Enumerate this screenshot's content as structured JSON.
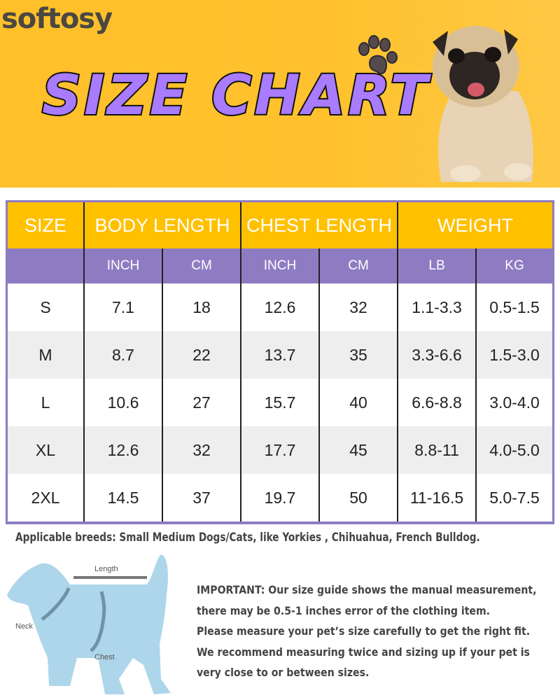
{
  "brand": "softosy",
  "title": "SIZE CHART",
  "colors": {
    "banner": "#FFC02A",
    "title_fill": "#A97BFF",
    "header": "#FFC000",
    "subheader": "#8E7CC3",
    "row_alt": "#EEEEEE"
  },
  "table": {
    "headers": [
      "SIZE",
      "BODY LENGTH",
      "CHEST LENGTH",
      "WEIGHT"
    ],
    "subheaders": [
      "",
      "INCH",
      "CM",
      "INCH",
      "CM",
      "LB",
      "KG"
    ],
    "rows": [
      [
        "S",
        "7.1",
        "18",
        "12.6",
        "32",
        "1.1-3.3",
        "0.5-1.5"
      ],
      [
        "M",
        "8.7",
        "22",
        "13.7",
        "35",
        "3.3-6.6",
        "1.5-3.0"
      ],
      [
        "L",
        "10.6",
        "27",
        "15.7",
        "40",
        "6.6-8.8",
        "3.0-4.0"
      ],
      [
        "XL",
        "12.6",
        "32",
        "17.7",
        "45",
        "8.8-11",
        "4.0-5.0"
      ],
      [
        "2XL",
        "14.5",
        "37",
        "19.7",
        "50",
        "11-16.5",
        "5.0-7.5"
      ]
    ]
  },
  "breeds": "Applicable breeds: Small Medium Dogs/Cats, like Yorkies , Chihuahua, French Bulldog.",
  "diagram": {
    "length": "Length",
    "neck": "Neck",
    "chest": "Chest"
  },
  "note": [
    "IMPORTANT: Our size guide shows the manual measurement,",
    "there may be 0.5-1 inches error of the clothing item.",
    "Please measure your pet’s size carefully to get the right fit.",
    "We recommend measuring twice and sizing up if your pet is",
    "very close to or between sizes."
  ]
}
